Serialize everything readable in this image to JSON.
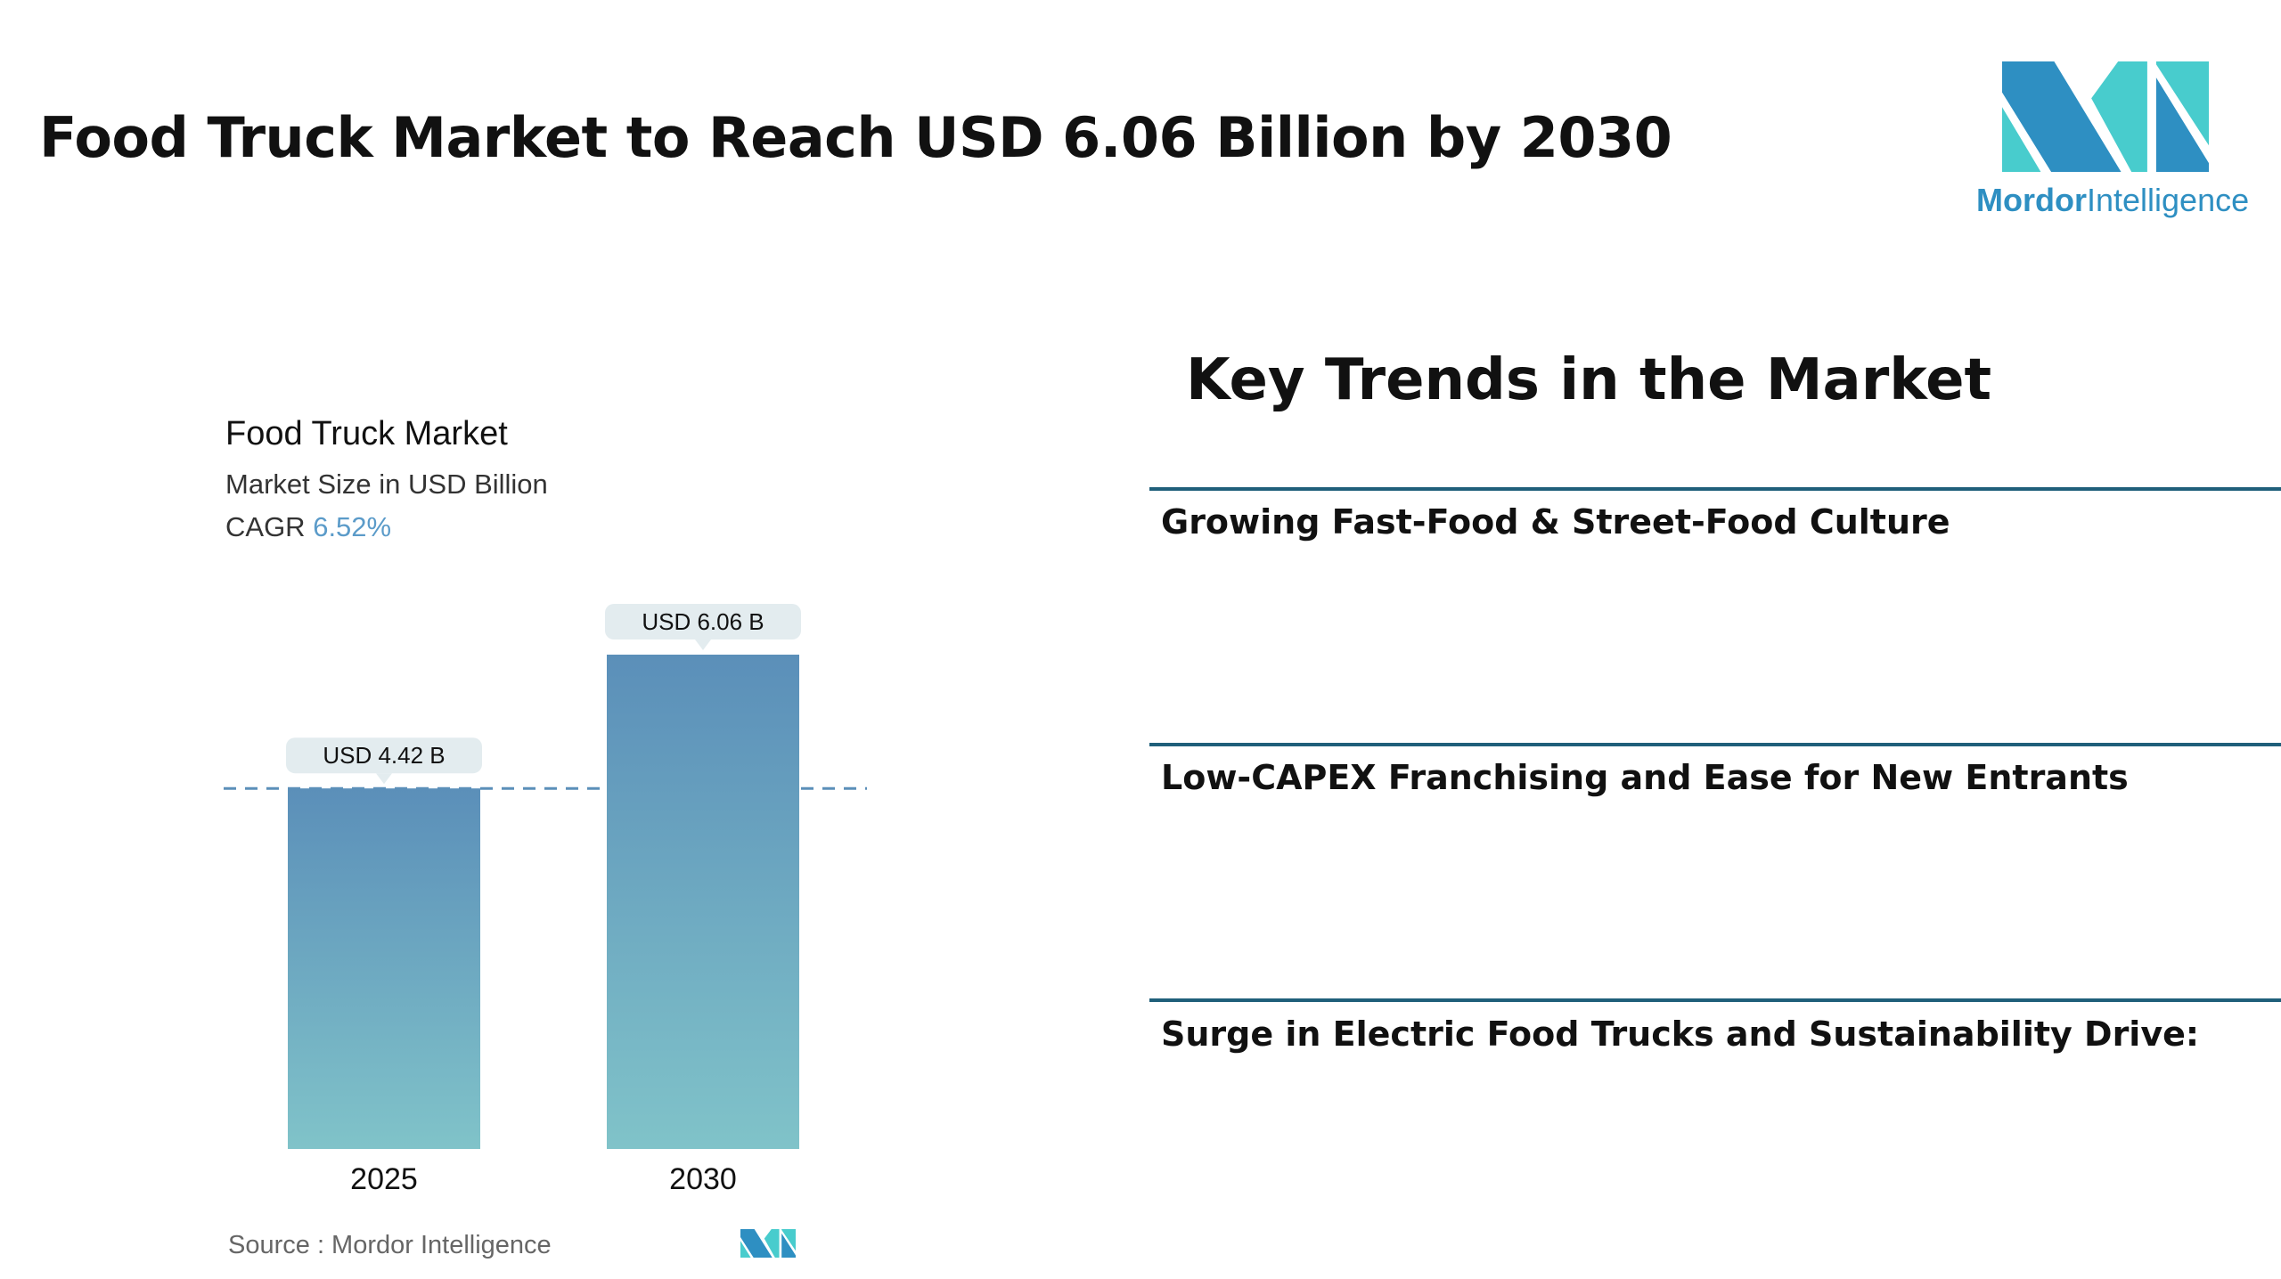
{
  "header": {
    "title": "Food Truck Market to Reach USD 6.06 Billion by 2030"
  },
  "logo": {
    "brand_bold": "Mordor",
    "brand_light": "Intelligence",
    "colors": {
      "dark": "#2e8fc2",
      "light": "#48cccd"
    }
  },
  "chart_data": {
    "type": "bar",
    "title": "Food Truck Market",
    "subtitle": "Market Size in USD Billion",
    "cagr_label": "CAGR",
    "cagr_value": "6.52%",
    "categories": [
      "2025",
      "2030"
    ],
    "values": [
      4.42,
      6.06
    ],
    "data_labels": [
      "USD 4.42 B",
      "USD 6.06 B"
    ],
    "reference_line": 4.42,
    "ylim": [
      0,
      6.06
    ],
    "grid": false,
    "colors": {
      "bar_top": "#5b8fb9",
      "bar_bottom": "#80c3c9",
      "label_bg": "#e3ecef",
      "cagr": "#5b9bc9"
    }
  },
  "source": {
    "text": "Source :  Mordor Intelligence"
  },
  "trends": {
    "title": "Key Trends in the Market",
    "items": [
      "Growing Fast-Food & Street-Food Culture",
      "Low-CAPEX Franchising and Ease for New Entrants",
      "Surge in Electric Food Trucks and Sustainability Drive:"
    ],
    "rule_color": "#1f5f7a"
  }
}
